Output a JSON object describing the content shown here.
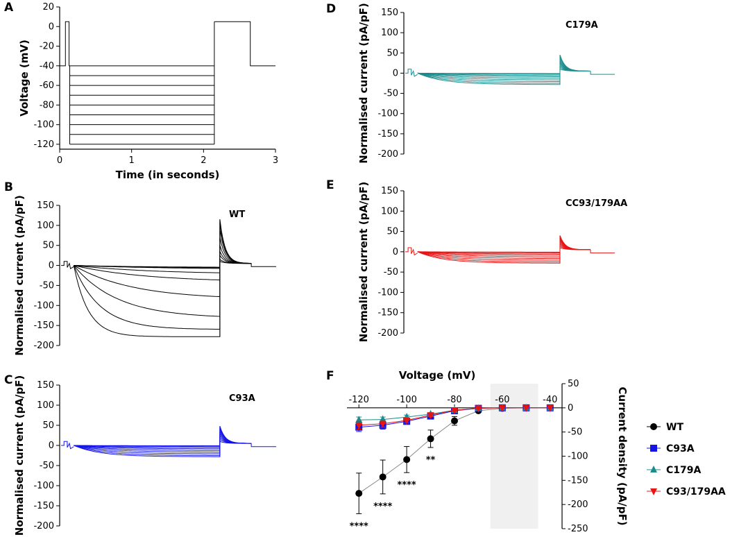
{
  "chart_data": [
    {
      "panel": "A",
      "type": "line",
      "title": "",
      "xlabel": "Time (in seconds)",
      "ylabel": "Voltage (mV)",
      "xlim": [
        0,
        3
      ],
      "ylim": [
        -125,
        20
      ],
      "xticks": [
        "0",
        "1",
        "2",
        "3"
      ],
      "yticks": [
        "20",
        "0",
        "-20",
        "-40",
        "-60",
        "-80",
        "-100",
        "-120"
      ],
      "holding_mV": -40,
      "prepulse": {
        "start_s": 0.08,
        "end_s": 0.13,
        "level_mV": 5
      },
      "steps": {
        "start_s": 0.14,
        "end_s": 2.15,
        "levels_mV": [
          -40,
          -50,
          -60,
          -70,
          -80,
          -90,
          -100,
          -110,
          -120
        ]
      },
      "tail": {
        "start_s": 2.15,
        "end_s": 2.65,
        "level_mV": 5
      },
      "end_s": 3.0
    },
    {
      "panel": "B",
      "type": "line",
      "title": "WT",
      "ylabel": "Normalised current (pA/pF)",
      "ylim": [
        -200,
        150
      ],
      "yticks": [
        "150",
        "100",
        "50",
        "0",
        "-50",
        "-100",
        "-150",
        "-200"
      ],
      "color": "#000000",
      "steady_state_pApF": [
        -5,
        -7,
        -10,
        -22,
        -42,
        -85,
        -132,
        -160,
        -178
      ],
      "tau_rel": [
        0.5,
        0.6,
        0.7,
        0.55,
        0.5,
        0.4,
        0.3,
        0.18,
        0.1
      ],
      "tail_peaks_pApF": [
        10,
        15,
        25,
        35,
        50,
        70,
        90,
        105,
        115
      ]
    },
    {
      "panel": "C",
      "type": "line",
      "title": "C93A",
      "ylabel": "Normalised current (pA/pF)",
      "ylim": [
        -200,
        150
      ],
      "yticks": [
        "150",
        "100",
        "50",
        "0",
        "-50",
        "-100",
        "-150",
        "-200"
      ],
      "color": "#1414e6",
      "steady_state_pApF": [
        -1,
        -3,
        -6,
        -9,
        -13,
        -17,
        -21,
        -25,
        -28
      ],
      "tau_rel": [
        0.4,
        0.4,
        0.35,
        0.3,
        0.28,
        0.25,
        0.22,
        0.2,
        0.18
      ],
      "tail_peaks_pApF": [
        10,
        15,
        20,
        25,
        30,
        35,
        40,
        44,
        48
      ]
    },
    {
      "panel": "D",
      "type": "line",
      "title": "C179A",
      "ylabel": "Normalised current (pA/pF)",
      "ylim": [
        -200,
        150
      ],
      "yticks": [
        "150",
        "100",
        "50",
        "0",
        "-50",
        "-100",
        "-150",
        "-200"
      ],
      "color": "#1a8c8c",
      "steady_state_pApF": [
        -1,
        -3,
        -6,
        -9,
        -13,
        -17,
        -21,
        -25,
        -28
      ],
      "tau_rel": [
        0.4,
        0.4,
        0.35,
        0.3,
        0.28,
        0.25,
        0.22,
        0.2,
        0.18
      ],
      "tail_peaks_pApF": [
        10,
        14,
        18,
        22,
        26,
        30,
        35,
        40,
        45
      ]
    },
    {
      "panel": "E",
      "type": "line",
      "title": "CC93/179AA",
      "ylabel": "Normalised current (pA/pF)",
      "ylim": [
        -200,
        150
      ],
      "yticks": [
        "150",
        "100",
        "50",
        "0",
        "-50",
        "-100",
        "-150",
        "-200"
      ],
      "color": "#e81414",
      "steady_state_pApF": [
        -1,
        -3,
        -6,
        -9,
        -13,
        -17,
        -21,
        -25,
        -28
      ],
      "tau_rel": [
        0.4,
        0.4,
        0.35,
        0.3,
        0.28,
        0.25,
        0.22,
        0.2,
        0.18
      ],
      "tail_peaks_pApF": [
        10,
        14,
        18,
        22,
        26,
        30,
        33,
        36,
        40
      ]
    },
    {
      "panel": "F",
      "type": "scatter",
      "title": "",
      "xlabel": "Voltage (mV)",
      "ylabel": "Current density (pA/pF)",
      "xlim": [
        -125,
        -35
      ],
      "ylim": [
        -250,
        50
      ],
      "xticks": [
        "-120",
        "-100",
        "-80",
        "-60",
        "-40"
      ],
      "yticks": [
        "50",
        "0",
        "-50",
        "-100",
        "-150",
        "-200",
        "-250"
      ],
      "shaded_region_mV": [
        -65,
        -45
      ],
      "x": [
        -120,
        -110,
        -100,
        -90,
        -80,
        -70,
        -60,
        -50,
        -40
      ],
      "series": [
        {
          "name": "WT",
          "color": "#000000",
          "marker": "circle",
          "values": [
            -177,
            -143,
            -107,
            -64,
            -27,
            -6,
            -1,
            0,
            0
          ],
          "errors": [
            42,
            35,
            27,
            18,
            9,
            3,
            1,
            0,
            0
          ]
        },
        {
          "name": "C93A",
          "color": "#1414e6",
          "marker": "square",
          "values": [
            -40,
            -36,
            -28,
            -17,
            -6,
            -1,
            0,
            0,
            0
          ],
          "errors": [
            9,
            8,
            6,
            4,
            2,
            1,
            0,
            0,
            0
          ]
        },
        {
          "name": "C179A",
          "color": "#1a8c8c",
          "marker": "triangle-up",
          "values": [
            -25,
            -24,
            -19,
            -13,
            -5,
            -1,
            0,
            0,
            0
          ],
          "errors": [
            6,
            5,
            4,
            3,
            2,
            1,
            0,
            0,
            0
          ]
        },
        {
          "name": "C93/179AA",
          "color": "#e81414",
          "marker": "triangle-down",
          "values": [
            -36,
            -33,
            -26,
            -15,
            -5,
            -1,
            0,
            0,
            0
          ],
          "errors": [
            8,
            7,
            5,
            3,
            2,
            1,
            0,
            0,
            0
          ]
        }
      ],
      "annotations": [
        {
          "text": "****",
          "x": -120
        },
        {
          "text": "****",
          "x": -110
        },
        {
          "text": "****",
          "x": -100
        },
        {
          "text": "**",
          "x": -90
        }
      ]
    }
  ],
  "panel_letters": {
    "A": "A",
    "B": "B",
    "C": "C",
    "D": "D",
    "E": "E",
    "F": "F"
  }
}
